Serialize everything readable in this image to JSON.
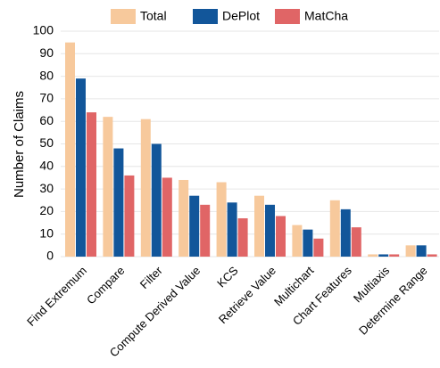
{
  "chart_data": {
    "type": "bar",
    "categories": [
      "Find Extremum",
      "Compare",
      "Filter",
      "Compute Derived Value",
      "KCS",
      "Retrieve Value",
      "Multichart",
      "Chart Features",
      "Multiaxis",
      "Determine Range"
    ],
    "series": [
      {
        "name": "Total",
        "color": "#f7c99c",
        "values": [
          95,
          62,
          61,
          34,
          33,
          27,
          14,
          25,
          1,
          5
        ]
      },
      {
        "name": "DePlot",
        "color": "#12569a",
        "values": [
          79,
          48,
          50,
          27,
          24,
          23,
          12,
          21,
          1,
          5
        ]
      },
      {
        "name": "MatCha",
        "color": "#e06566",
        "values": [
          64,
          36,
          35,
          23,
          17,
          18,
          8,
          13,
          1,
          1
        ]
      }
    ],
    "ylabel": "Number of Claims",
    "ylim": [
      0,
      100
    ],
    "yticks": [
      0,
      10,
      20,
      30,
      40,
      50,
      60,
      70,
      80,
      90,
      100
    ],
    "grid": true,
    "legend": "top"
  }
}
